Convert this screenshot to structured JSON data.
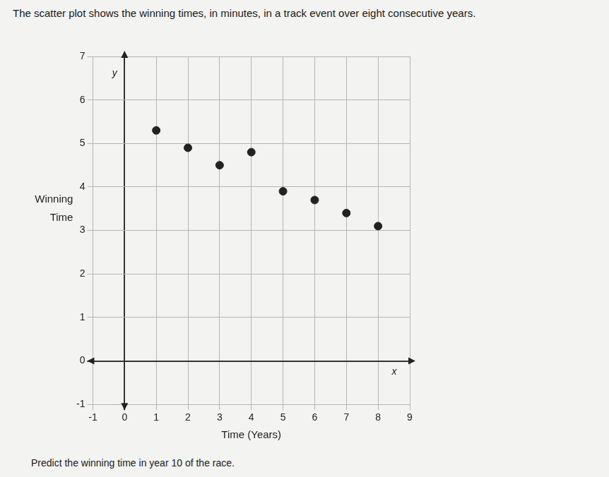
{
  "header": "The scatter plot shows the winning times, in minutes, in a track event over eight consecutive years.",
  "question": "Predict the winning time in year 10 of the race.",
  "chart_data": {
    "type": "scatter",
    "x_label": "Time (Years)",
    "y_label": "Winning Time",
    "x_axis_letter": "x",
    "y_axis_letter": "y",
    "x": [
      1,
      2,
      3,
      4,
      5,
      6,
      7,
      8
    ],
    "values": [
      5.3,
      4.9,
      4.5,
      4.8,
      3.9,
      3.7,
      3.4,
      3.1
    ],
    "color": "#222222",
    "marker": "circle",
    "xlim": [
      -1,
      9
    ],
    "ylim": [
      -1,
      7
    ],
    "xticks": [
      -1,
      0,
      1,
      2,
      3,
      4,
      5,
      6,
      7,
      8,
      9
    ],
    "yticks": [
      -1,
      0,
      1,
      2,
      3,
      4,
      5,
      6,
      7
    ],
    "grid": true
  }
}
